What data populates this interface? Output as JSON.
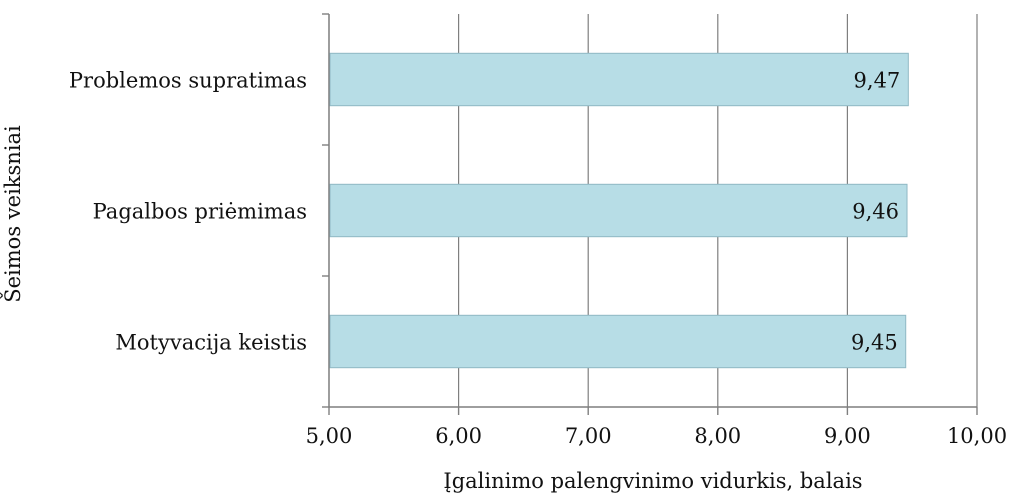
{
  "chart_data": {
    "type": "bar",
    "orientation": "horizontal",
    "categories": [
      "Problemos supratimas",
      "Pagalbos priėmimas",
      "Motyvacija keistis"
    ],
    "values": [
      9.47,
      9.46,
      9.45
    ],
    "data_labels": [
      "9,47",
      "9,46",
      "9,45"
    ],
    "xlabel": "Įgalinimo palengvinimo vidurkis, balais",
    "ylabel": "Šeimos veiksniai",
    "xlim": [
      5.0,
      10.0
    ],
    "xticks": [
      5,
      6,
      7,
      8,
      9,
      10
    ],
    "xtick_labels": [
      "5,00",
      "6,00",
      "7,00",
      "8,00",
      "9,00",
      "10,00"
    ],
    "grid": true,
    "legend": "none",
    "colors": {
      "bar": "#b7dde6",
      "bar_edge": "#8fb8c4",
      "grid": "#7f7f7f"
    }
  }
}
